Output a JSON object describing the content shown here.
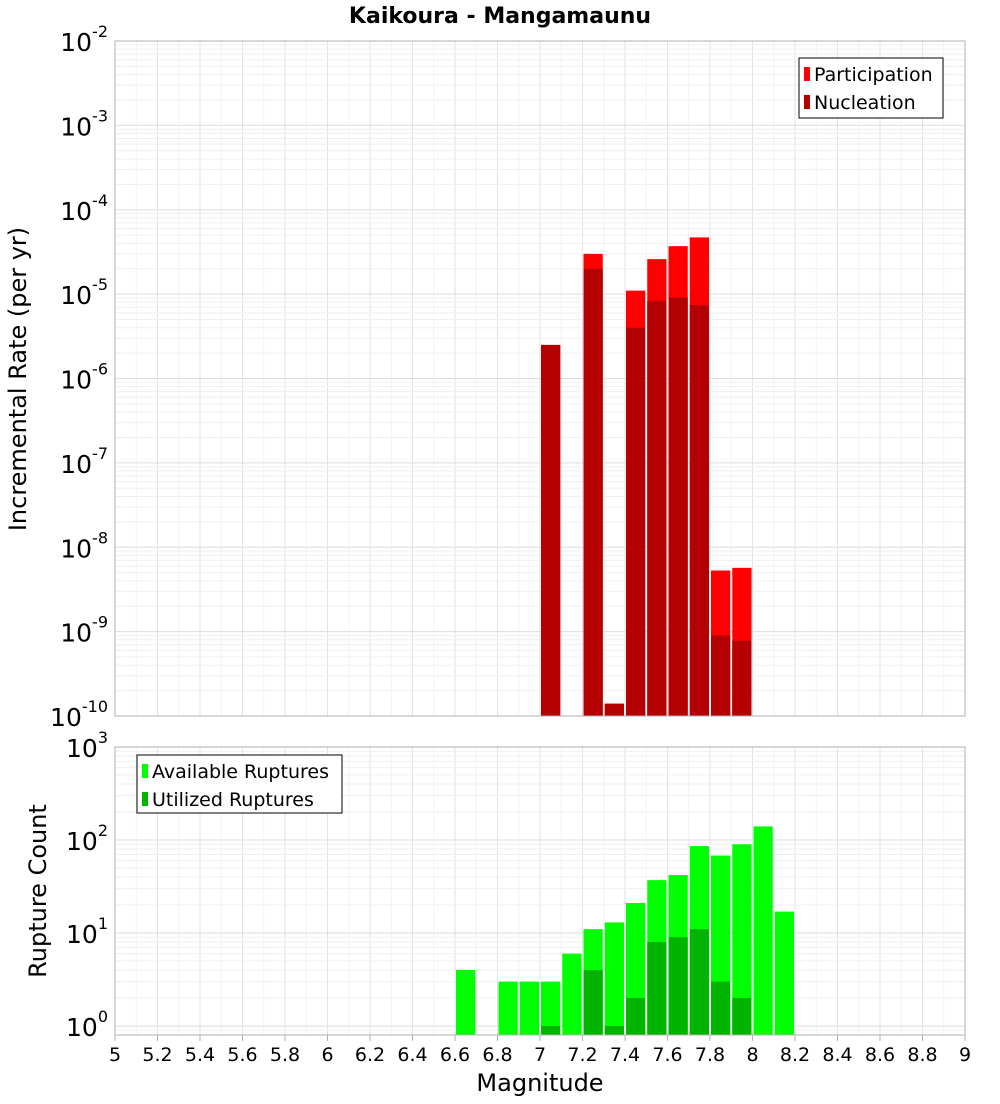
{
  "chart_data": [
    {
      "type": "bar",
      "title": "Kaikoura - Mangamaunu",
      "ylabel": "Incremental Rate (per yr)",
      "yscale": "log",
      "ylim": [
        1e-10,
        0.01
      ],
      "ytick_exponents": [
        -10,
        -9,
        -8,
        -7,
        -6,
        -5,
        -4,
        -3,
        -2
      ],
      "xlim": [
        5,
        9
      ],
      "bin_width": 0.1,
      "grid": true,
      "legend_position": "top-right",
      "series": [
        {
          "name": "Participation",
          "color": "#ff0000",
          "x": [
            7.05,
            7.25,
            7.35,
            7.45,
            7.55,
            7.65,
            7.75,
            7.85,
            7.95
          ],
          "values": [
            2.5e-06,
            3e-05,
            1.4e-10,
            1.1e-05,
            2.6e-05,
            3.7e-05,
            4.7e-05,
            5.3e-09,
            5.7e-09
          ]
        },
        {
          "name": "Nucleation",
          "color": "#b40000",
          "x": [
            7.05,
            7.25,
            7.35,
            7.45,
            7.55,
            7.65,
            7.75,
            7.85,
            7.95
          ],
          "values": [
            2.5e-06,
            2e-05,
            1.4e-10,
            4e-06,
            8.3e-06,
            9.1e-06,
            7.4e-06,
            9e-10,
            7.8e-10
          ]
        }
      ]
    },
    {
      "type": "bar",
      "xlabel": "Magnitude",
      "ylabel": "Rupture Count",
      "yscale": "log",
      "ylim": [
        0.8,
        1000
      ],
      "ytick_exponents": [
        0,
        1,
        2,
        3
      ],
      "xlim": [
        5,
        9
      ],
      "xticks": [
        "5",
        "5.2",
        "5.4",
        "5.6",
        "5.8",
        "6",
        "6.2",
        "6.4",
        "6.6",
        "6.8",
        "7",
        "7.2",
        "7.4",
        "7.6",
        "7.8",
        "8",
        "8.2",
        "8.4",
        "8.6",
        "8.8",
        "9"
      ],
      "bin_width": 0.1,
      "grid": true,
      "legend_position": "top-left",
      "series": [
        {
          "name": "Available Ruptures",
          "color": "#00ff00",
          "x": [
            6.65,
            6.85,
            6.95,
            7.05,
            7.15,
            7.25,
            7.35,
            7.45,
            7.55,
            7.65,
            7.75,
            7.85,
            7.95,
            8.05,
            8.15
          ],
          "values": [
            4,
            3,
            3,
            3,
            6,
            11,
            13,
            21,
            37,
            42,
            86,
            68,
            90,
            140,
            17
          ]
        },
        {
          "name": "Utilized Ruptures",
          "color": "#00b400",
          "x": [
            7.05,
            7.25,
            7.35,
            7.45,
            7.55,
            7.65,
            7.75,
            7.85,
            7.95
          ],
          "values": [
            1,
            4,
            1,
            2,
            8,
            9,
            11,
            3,
            2
          ]
        }
      ]
    }
  ]
}
